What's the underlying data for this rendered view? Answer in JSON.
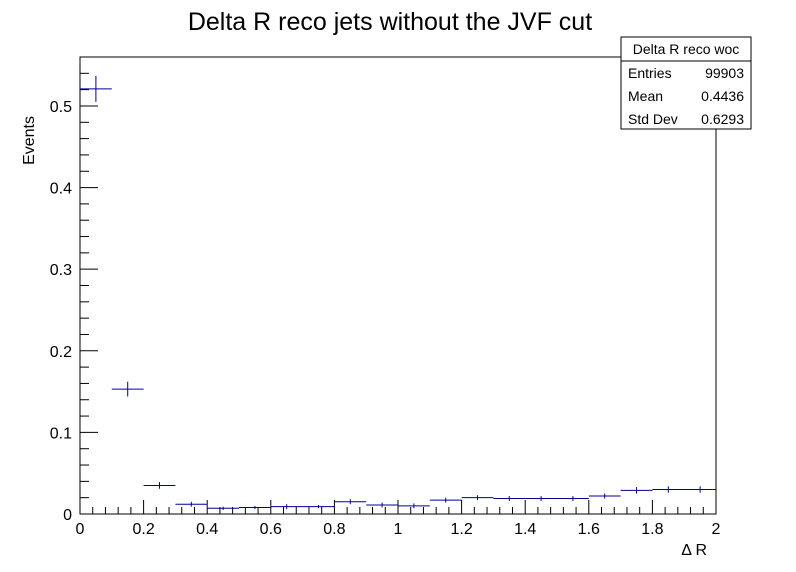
{
  "chart_data": {
    "type": "histogram",
    "title": "Delta R reco jets without the JVF cut",
    "xlabel": "Δ R",
    "ylabel": "Events",
    "xlim": [
      0,
      2
    ],
    "ylim": [
      0,
      0.56
    ],
    "x_ticks": [
      "0",
      "0.2",
      "0.4",
      "0.6",
      "0.8",
      "1",
      "1.2",
      "1.4",
      "1.6",
      "1.8",
      "2"
    ],
    "y_ticks": [
      "0",
      "0.1",
      "0.2",
      "0.3",
      "0.4",
      "0.5"
    ],
    "x_tick_values": [
      0,
      0.2,
      0.4,
      0.6,
      0.8,
      1.0,
      1.2,
      1.4,
      1.6,
      1.8,
      2.0
    ],
    "y_tick_values": [
      0,
      0.1,
      0.2,
      0.3,
      0.4,
      0.5
    ],
    "bin_width": 0.1,
    "bins": [
      {
        "x": 0.05,
        "y": 0.521,
        "err": 0.016
      },
      {
        "x": 0.15,
        "y": 0.153,
        "err": 0.009
      },
      {
        "x": 0.25,
        "y": 0.035,
        "err": 0.004
      },
      {
        "x": 0.35,
        "y": 0.012,
        "err": 0.003
      },
      {
        "x": 0.45,
        "y": 0.007,
        "err": 0.002
      },
      {
        "x": 0.55,
        "y": 0.008,
        "err": 0.002
      },
      {
        "x": 0.65,
        "y": 0.009,
        "err": 0.003
      },
      {
        "x": 0.75,
        "y": 0.009,
        "err": 0.002
      },
      {
        "x": 0.85,
        "y": 0.015,
        "err": 0.003
      },
      {
        "x": 0.95,
        "y": 0.011,
        "err": 0.003
      },
      {
        "x": 1.05,
        "y": 0.01,
        "err": 0.003
      },
      {
        "x": 1.15,
        "y": 0.017,
        "err": 0.003
      },
      {
        "x": 1.25,
        "y": 0.02,
        "err": 0.003
      },
      {
        "x": 1.35,
        "y": 0.019,
        "err": 0.003
      },
      {
        "x": 1.45,
        "y": 0.019,
        "err": 0.003
      },
      {
        "x": 1.55,
        "y": 0.019,
        "err": 0.003
      },
      {
        "x": 1.65,
        "y": 0.022,
        "err": 0.003
      },
      {
        "x": 1.75,
        "y": 0.029,
        "err": 0.004
      },
      {
        "x": 1.85,
        "y": 0.03,
        "err": 0.004
      },
      {
        "x": 1.95,
        "y": 0.03,
        "err": 0.004
      }
    ],
    "marker_color": "#000099",
    "grid": false,
    "stats_box": {
      "name": "Delta R reco woc",
      "rows": [
        {
          "label": "Entries",
          "value": "99903"
        },
        {
          "label": "Mean",
          "value": "0.4436"
        },
        {
          "label": "Std Dev",
          "value": "0.6293"
        }
      ],
      "placement": "top-right"
    }
  }
}
